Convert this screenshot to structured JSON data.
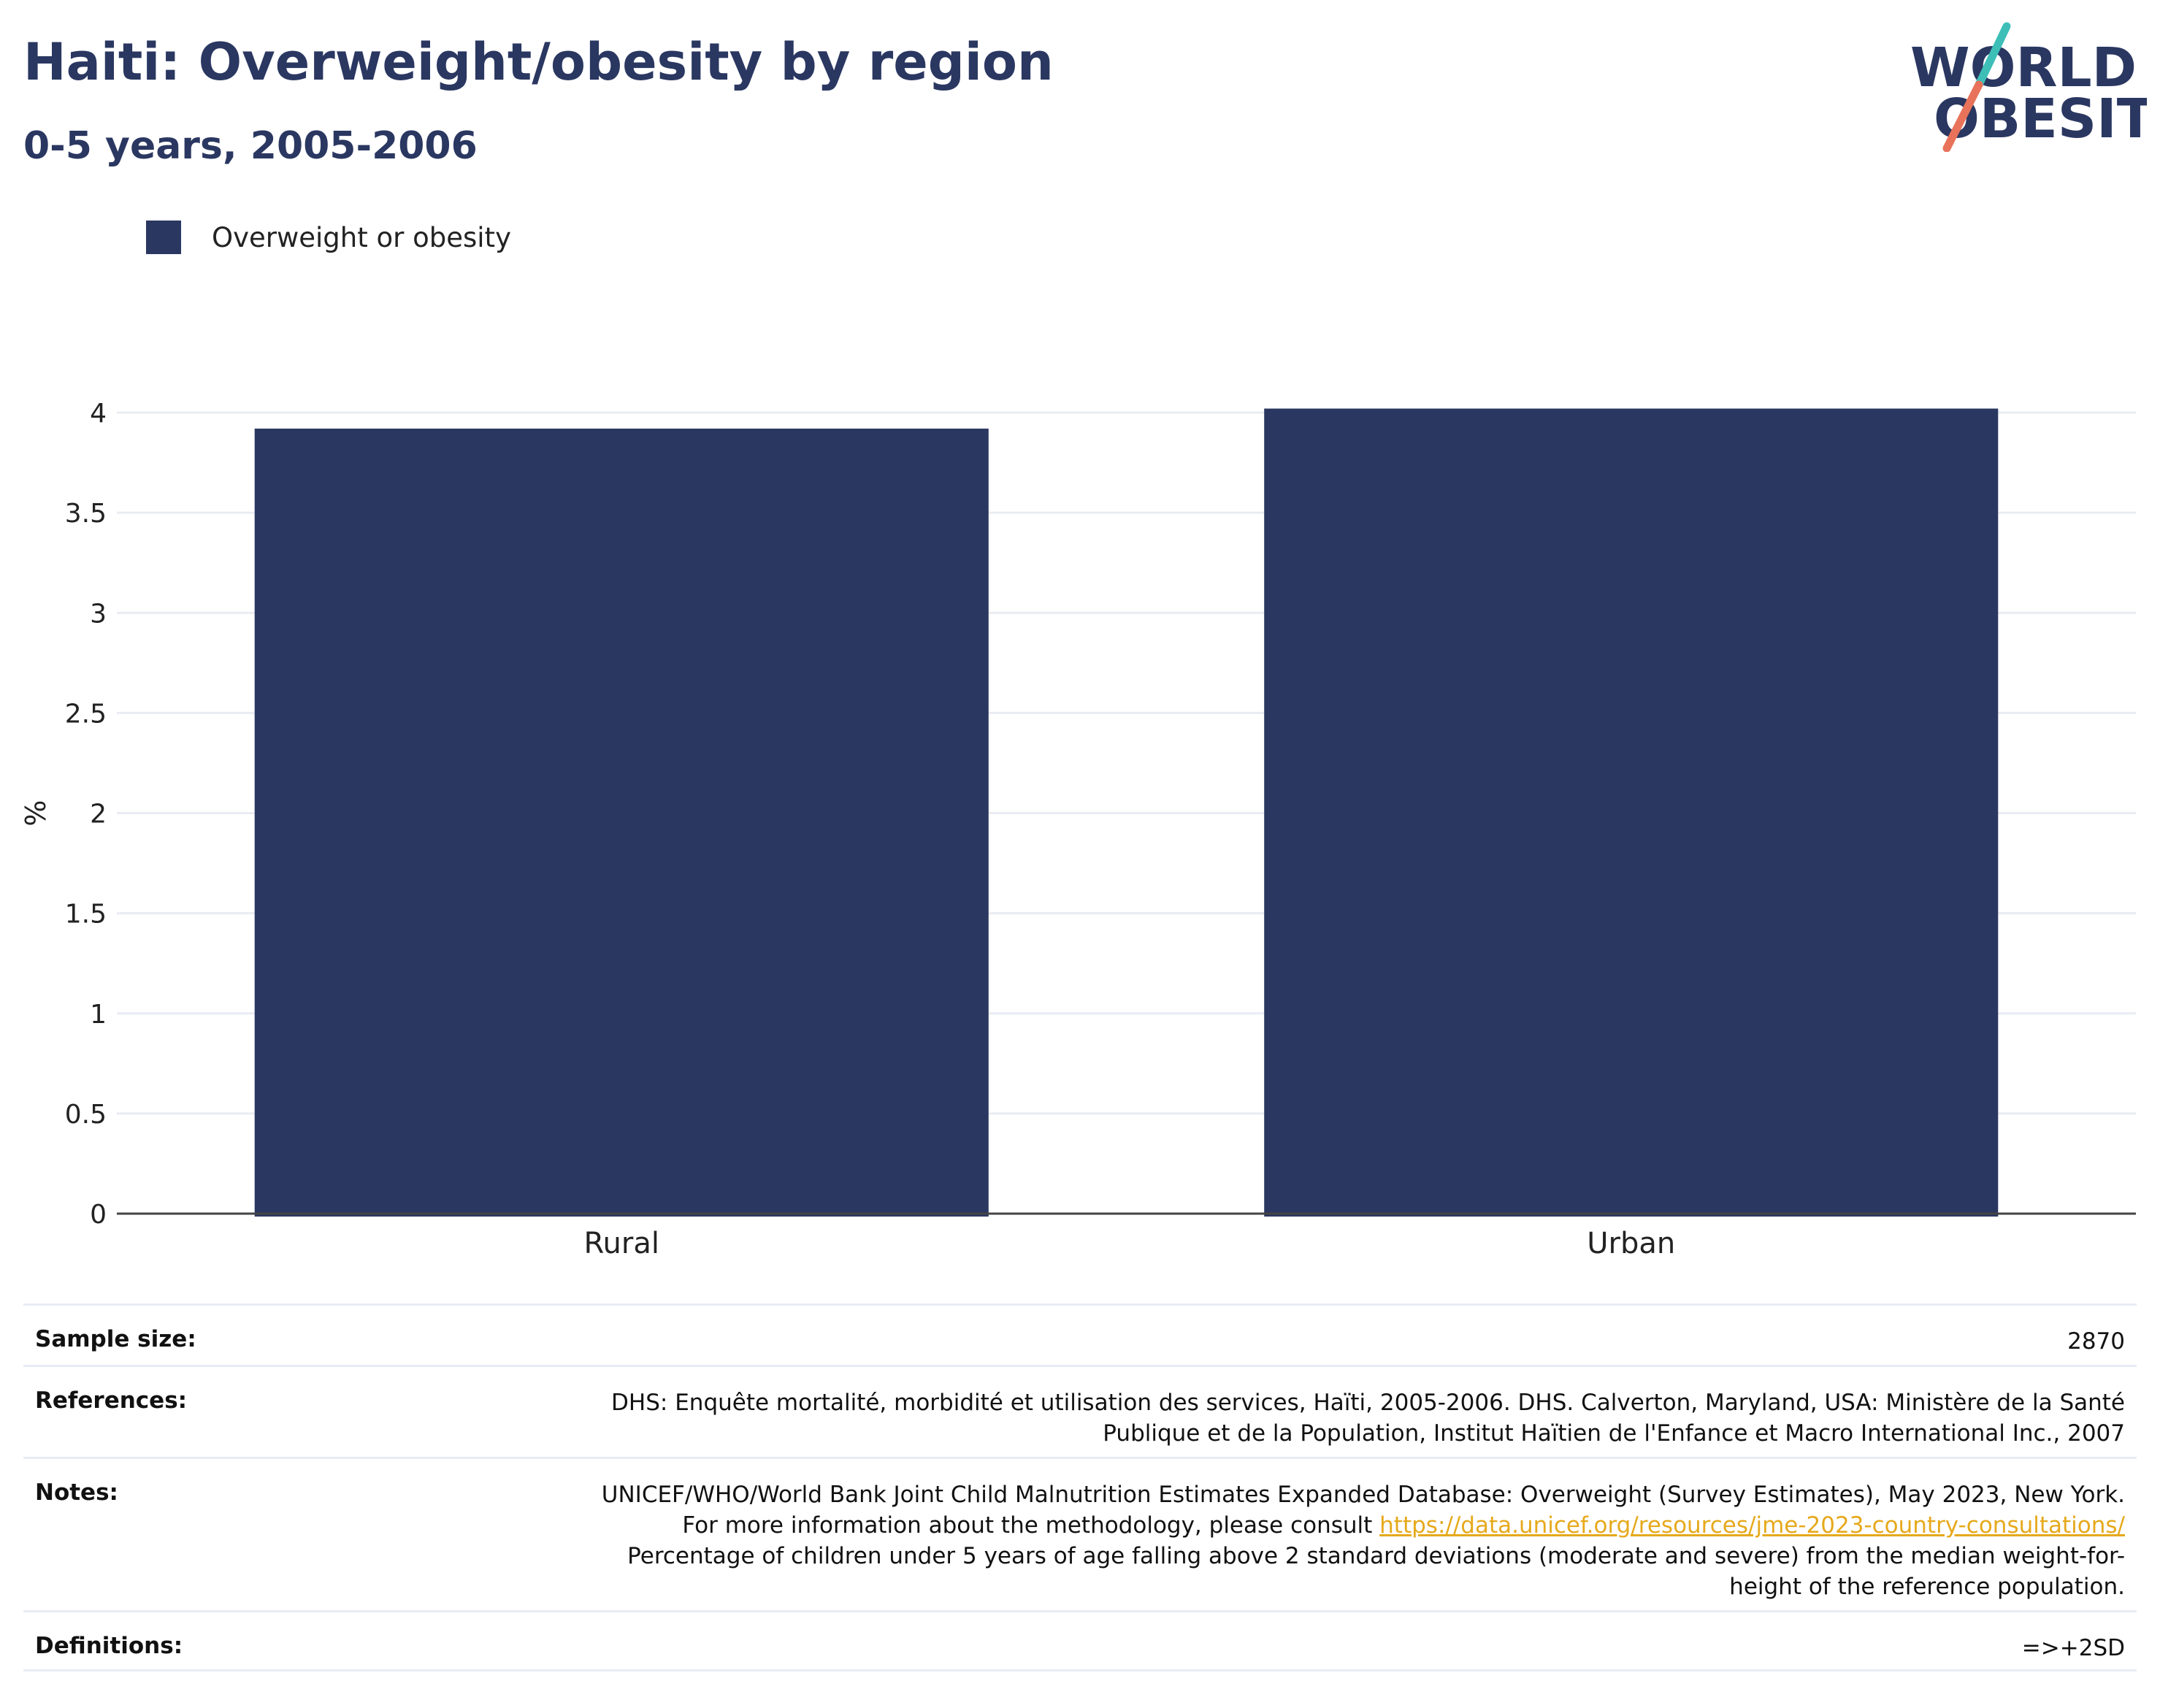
{
  "header": {
    "title": "Haiti: Overweight/obesity by region",
    "subtitle": "0-5 years, 2005-2006"
  },
  "logo": {
    "line1": "WORLD",
    "line2": "OBESITY",
    "colors": {
      "text": "#2a3761",
      "slash_top": "#3dbfb8",
      "slash_bottom": "#e8735a"
    }
  },
  "legend": {
    "label": "Overweight or obesity",
    "color": "#2a3761"
  },
  "chart_data": {
    "type": "bar",
    "categories": [
      "Rural",
      "Urban"
    ],
    "series": [
      {
        "name": "Overweight or obesity",
        "values": [
          3.92,
          4.02
        ],
        "color": "#2a3761"
      }
    ],
    "ylabel": "%",
    "ylim": [
      0,
      4
    ],
    "yticks": [
      0,
      0.5,
      1,
      1.5,
      2,
      2.5,
      3,
      3.5,
      4
    ],
    "ytick_labels": [
      "0",
      "0.5",
      "1",
      "1.5",
      "2",
      "2.5",
      "3",
      "3.5",
      "4"
    ],
    "grid": true,
    "legend_position": "top-left"
  },
  "info": {
    "sample_size": {
      "label": "Sample size:",
      "value": "2870"
    },
    "references": {
      "label": "References:",
      "value": "DHS: Enquête mortalité, morbidité et utilisation des services, Haïti, 2005-2006. DHS. Calverton, Maryland, USA: Ministère de la Santé Publique et de la Population, Institut Haïtien de l'Enfance et Macro International Inc., 2007"
    },
    "notes": {
      "label": "Notes:",
      "text_before": "UNICEF/WHO/World Bank Joint Child Malnutrition Estimates Expanded Database: Overweight (Survey Estimates), May 2023, New York. For more information about the methodology, please consult ",
      "link": "https://data.unicef.org/resources/jme-2023-country-consultations/",
      "text_after": " Percentage of children under 5 years of age falling above 2 standard deviations (moderate and severe) from the median weight-for-height of the reference population."
    },
    "definitions": {
      "label": "Definitions:",
      "value": "=>+2SD"
    }
  }
}
